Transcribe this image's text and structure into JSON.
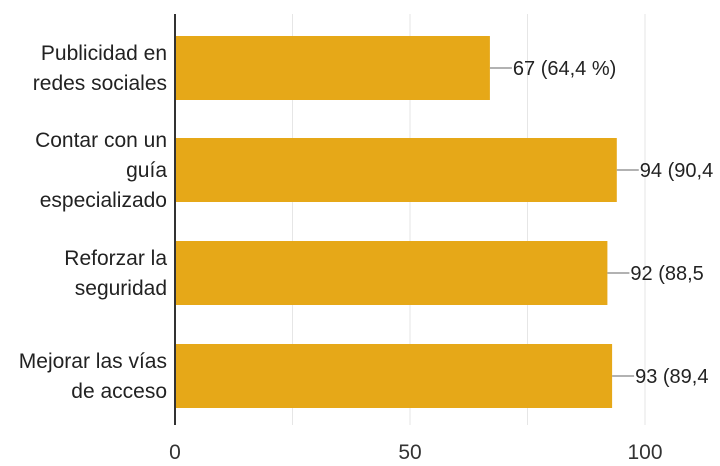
{
  "chart_data": {
    "type": "bar",
    "orientation": "horizontal",
    "categories": [
      [
        "Publicidad en",
        "redes sociales"
      ],
      [
        "Contar con un",
        "guía",
        "especializado"
      ],
      [
        "Reforzar la",
        "seguridad"
      ],
      [
        "Mejorar las vías",
        "de acceso"
      ]
    ],
    "values": [
      67,
      94,
      92,
      93
    ],
    "data_labels": [
      "67 (64,4 %)",
      "94 (90,4",
      "92 (88,5",
      "93 (89,4"
    ],
    "xlim": [
      0,
      100
    ],
    "xticks": [
      0,
      50,
      100
    ],
    "tick_labels": [
      "0",
      "50",
      "100"
    ],
    "grid": true,
    "colors": {
      "bar": "#E6A818",
      "axis": "#333333",
      "grid": "#e6e6e6",
      "leader": "#999999"
    }
  }
}
